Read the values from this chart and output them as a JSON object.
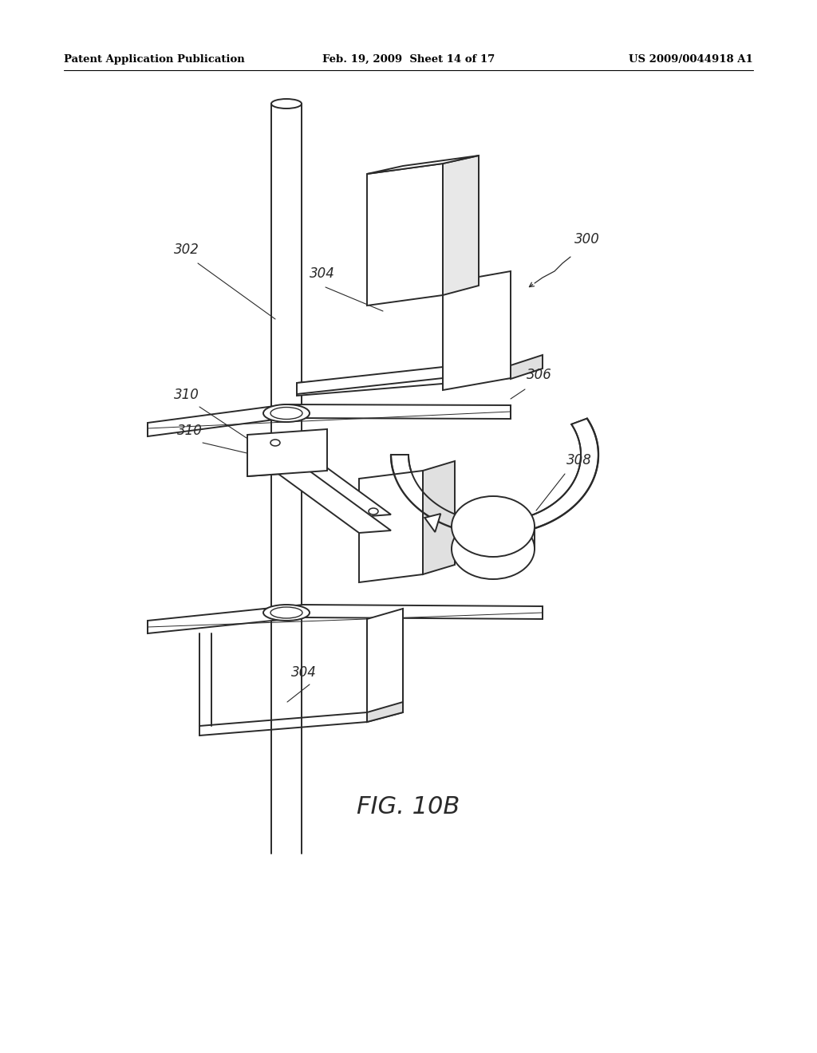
{
  "background_color": "#ffffff",
  "header_left": "Patent Application Publication",
  "header_mid": "Feb. 19, 2009  Sheet 14 of 17",
  "header_right": "US 2009/0044918 A1",
  "figure_label": "FIG. 10B",
  "line_color": "#2a2a2a",
  "label_color": "#2a2a2a",
  "fig_width": 1024,
  "fig_height": 1320
}
